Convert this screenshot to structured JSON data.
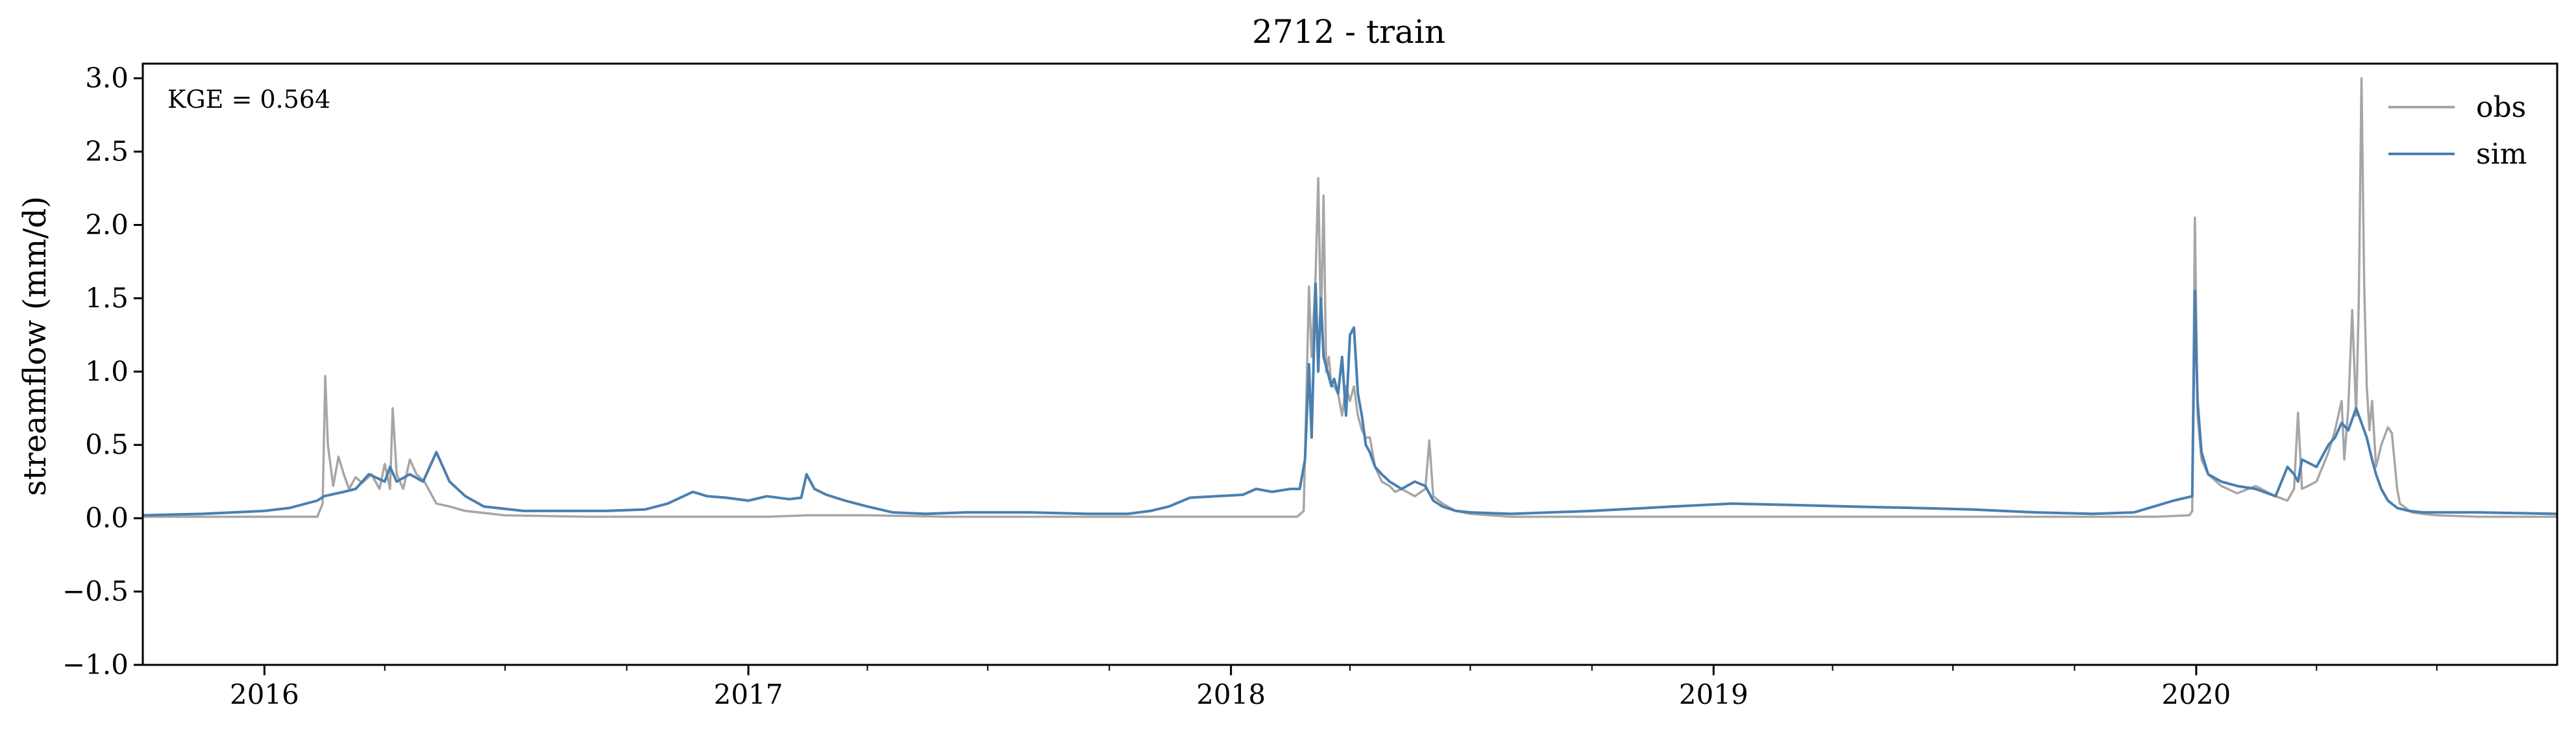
{
  "chart_data": {
    "type": "line",
    "title": "2712 - train",
    "xlabel": "",
    "ylabel": "streamflow (mm/d)",
    "ylim": [
      -1.0,
      3.1
    ],
    "xlim": [
      "2015-10-01",
      "2020-09-30"
    ],
    "grid": false,
    "legend_position": "top-right",
    "annotation": "KGE = 0.564",
    "yticks": [
      -1.0,
      -0.5,
      0.0,
      0.5,
      1.0,
      1.5,
      2.0,
      2.5,
      3.0
    ],
    "ytick_labels": [
      "−1.0",
      "−0.5",
      "0.0",
      "0.5",
      "1.0",
      "1.5",
      "2.0",
      "2.5",
      "3.0"
    ],
    "xticks": [
      "2016-01-01",
      "2017-01-01",
      "2018-01-01",
      "2019-01-01",
      "2020-01-01"
    ],
    "xtick_labels": [
      "2016",
      "2017",
      "2018",
      "2019",
      "2020"
    ],
    "series": [
      {
        "name": "obs",
        "color": "#a6a6a6",
        "x": [
          "2015-10-01",
          "2015-11-15",
          "2016-01-01",
          "2016-02-10",
          "2016-02-14",
          "2016-02-16",
          "2016-02-18",
          "2016-02-22",
          "2016-02-26",
          "2016-03-01",
          "2016-03-05",
          "2016-03-10",
          "2016-03-15",
          "2016-03-22",
          "2016-03-28",
          "2016-04-01",
          "2016-04-05",
          "2016-04-07",
          "2016-04-10",
          "2016-04-15",
          "2016-04-20",
          "2016-04-25",
          "2016-05-01",
          "2016-05-10",
          "2016-05-20",
          "2016-06-01",
          "2016-07-01",
          "2016-09-01",
          "2016-12-01",
          "2017-01-15",
          "2017-02-15",
          "2017-04-01",
          "2017-06-01",
          "2017-09-01",
          "2017-12-01",
          "2018-02-01",
          "2018-02-20",
          "2018-02-25",
          "2018-03-01",
          "2018-03-03",
          "2018-03-06",
          "2018-03-08",
          "2018-03-10",
          "2018-03-12",
          "2018-03-14",
          "2018-03-16",
          "2018-03-18",
          "2018-03-20",
          "2018-03-23",
          "2018-03-26",
          "2018-03-29",
          "2018-04-01",
          "2018-04-04",
          "2018-04-07",
          "2018-04-10",
          "2018-04-13",
          "2018-04-16",
          "2018-04-20",
          "2018-04-25",
          "2018-05-01",
          "2018-05-05",
          "2018-05-10",
          "2018-05-20",
          "2018-05-28",
          "2018-05-31",
          "2018-06-03",
          "2018-06-10",
          "2018-06-20",
          "2018-07-01",
          "2018-08-01",
          "2018-10-01",
          "2019-01-01",
          "2019-05-01",
          "2019-09-01",
          "2019-12-01",
          "2019-12-27",
          "2019-12-29",
          "2019-12-31",
          "2020-01-02",
          "2020-01-05",
          "2020-01-10",
          "2020-01-20",
          "2020-02-01",
          "2020-02-15",
          "2020-03-01",
          "2020-03-10",
          "2020-03-15",
          "2020-03-18",
          "2020-03-21",
          "2020-04-01",
          "2020-04-10",
          "2020-04-15",
          "2020-04-20",
          "2020-04-22",
          "2020-04-25",
          "2020-04-28",
          "2020-05-01",
          "2020-05-03",
          "2020-05-05",
          "2020-05-07",
          "2020-05-09",
          "2020-05-11",
          "2020-05-13",
          "2020-05-16",
          "2020-05-20",
          "2020-05-25",
          "2020-05-28",
          "2020-06-01",
          "2020-06-03",
          "2020-06-06",
          "2020-06-12",
          "2020-06-20",
          "2020-07-01",
          "2020-08-01",
          "2020-09-30"
        ],
        "values": [
          0.01,
          0.01,
          0.01,
          0.01,
          0.1,
          0.97,
          0.5,
          0.22,
          0.42,
          0.3,
          0.2,
          0.28,
          0.24,
          0.3,
          0.2,
          0.37,
          0.2,
          0.75,
          0.3,
          0.2,
          0.4,
          0.3,
          0.25,
          0.1,
          0.08,
          0.05,
          0.02,
          0.01,
          0.01,
          0.01,
          0.02,
          0.02,
          0.01,
          0.01,
          0.01,
          0.01,
          0.01,
          0.05,
          1.58,
          1.1,
          1.65,
          2.32,
          1.3,
          2.2,
          1.0,
          1.1,
          0.9,
          0.9,
          0.85,
          0.7,
          0.9,
          0.8,
          0.9,
          0.7,
          0.6,
          0.55,
          0.55,
          0.35,
          0.25,
          0.22,
          0.18,
          0.2,
          0.15,
          0.2,
          0.53,
          0.15,
          0.1,
          0.05,
          0.03,
          0.01,
          0.01,
          0.01,
          0.01,
          0.01,
          0.01,
          0.02,
          0.05,
          2.05,
          0.7,
          0.4,
          0.3,
          0.22,
          0.17,
          0.22,
          0.15,
          0.12,
          0.2,
          0.72,
          0.2,
          0.25,
          0.45,
          0.6,
          0.8,
          0.4,
          0.75,
          1.42,
          0.7,
          1.5,
          3.0,
          1.6,
          0.9,
          0.6,
          0.8,
          0.35,
          0.5,
          0.62,
          0.58,
          0.2,
          0.1,
          0.08,
          0.04,
          0.03,
          0.02,
          0.01,
          0.01
        ]
      },
      {
        "name": "sim",
        "color": "#4a7fb0",
        "x": [
          "2015-10-01",
          "2015-11-15",
          "2016-01-01",
          "2016-01-20",
          "2016-02-10",
          "2016-02-15",
          "2016-03-01",
          "2016-03-10",
          "2016-03-20",
          "2016-04-01",
          "2016-04-05",
          "2016-04-10",
          "2016-04-20",
          "2016-04-30",
          "2016-05-10",
          "2016-05-15",
          "2016-05-20",
          "2016-06-01",
          "2016-06-15",
          "2016-07-15",
          "2016-08-15",
          "2016-09-15",
          "2016-10-15",
          "2016-11-01",
          "2016-11-20",
          "2016-12-01",
          "2016-12-15",
          "2017-01-01",
          "2017-01-15",
          "2017-02-01",
          "2017-02-10",
          "2017-02-14",
          "2017-02-20",
          "2017-03-01",
          "2017-03-15",
          "2017-04-01",
          "2017-04-20",
          "2017-05-15",
          "2017-06-15",
          "2017-08-01",
          "2017-09-15",
          "2017-10-15",
          "2017-11-01",
          "2017-11-15",
          "2017-12-01",
          "2018-01-10",
          "2018-01-20",
          "2018-02-01",
          "2018-02-15",
          "2018-02-22",
          "2018-02-26",
          "2018-03-01",
          "2018-03-03",
          "2018-03-06",
          "2018-03-08",
          "2018-03-10",
          "2018-03-12",
          "2018-03-15",
          "2018-03-18",
          "2018-03-20",
          "2018-03-23",
          "2018-03-26",
          "2018-03-29",
          "2018-04-01",
          "2018-04-04",
          "2018-04-07",
          "2018-04-10",
          "2018-04-13",
          "2018-04-16",
          "2018-04-20",
          "2018-04-25",
          "2018-05-01",
          "2018-05-10",
          "2018-05-20",
          "2018-05-28",
          "2018-06-03",
          "2018-06-10",
          "2018-06-20",
          "2018-07-01",
          "2018-08-01",
          "2018-10-01",
          "2018-12-01",
          "2019-01-15",
          "2019-03-01",
          "2019-04-15",
          "2019-06-01",
          "2019-07-15",
          "2019-09-01",
          "2019-10-15",
          "2019-11-15",
          "2019-12-15",
          "2019-12-29",
          "2019-12-31",
          "2020-01-02",
          "2020-01-05",
          "2020-01-10",
          "2020-01-20",
          "2020-02-01",
          "2020-02-15",
          "2020-03-01",
          "2020-03-10",
          "2020-03-15",
          "2020-03-18",
          "2020-03-21",
          "2020-04-01",
          "2020-04-10",
          "2020-04-15",
          "2020-04-20",
          "2020-04-25",
          "2020-05-01",
          "2020-05-05",
          "2020-05-09",
          "2020-05-13",
          "2020-05-16",
          "2020-05-20",
          "2020-05-25",
          "2020-06-01",
          "2020-06-10",
          "2020-06-20",
          "2020-07-01",
          "2020-08-01",
          "2020-09-30"
        ],
        "values": [
          0.02,
          0.03,
          0.05,
          0.07,
          0.12,
          0.15,
          0.18,
          0.2,
          0.3,
          0.25,
          0.35,
          0.25,
          0.3,
          0.25,
          0.45,
          0.35,
          0.25,
          0.15,
          0.08,
          0.05,
          0.05,
          0.05,
          0.06,
          0.1,
          0.18,
          0.15,
          0.14,
          0.12,
          0.15,
          0.13,
          0.14,
          0.3,
          0.2,
          0.16,
          0.12,
          0.08,
          0.04,
          0.03,
          0.04,
          0.04,
          0.03,
          0.03,
          0.05,
          0.08,
          0.14,
          0.16,
          0.2,
          0.18,
          0.2,
          0.2,
          0.4,
          1.05,
          0.55,
          1.6,
          1.0,
          1.5,
          1.1,
          1.0,
          0.9,
          0.95,
          0.85,
          1.1,
          0.7,
          1.25,
          1.3,
          0.85,
          0.7,
          0.5,
          0.45,
          0.35,
          0.3,
          0.25,
          0.2,
          0.25,
          0.22,
          0.12,
          0.08,
          0.05,
          0.04,
          0.03,
          0.05,
          0.08,
          0.1,
          0.09,
          0.08,
          0.07,
          0.06,
          0.04,
          0.03,
          0.04,
          0.12,
          0.15,
          1.55,
          0.8,
          0.45,
          0.3,
          0.25,
          0.22,
          0.2,
          0.15,
          0.35,
          0.3,
          0.25,
          0.4,
          0.35,
          0.5,
          0.55,
          0.65,
          0.6,
          0.75,
          0.65,
          0.55,
          0.4,
          0.3,
          0.2,
          0.12,
          0.07,
          0.05,
          0.04,
          0.04,
          0.04,
          0.03
        ]
      }
    ]
  }
}
